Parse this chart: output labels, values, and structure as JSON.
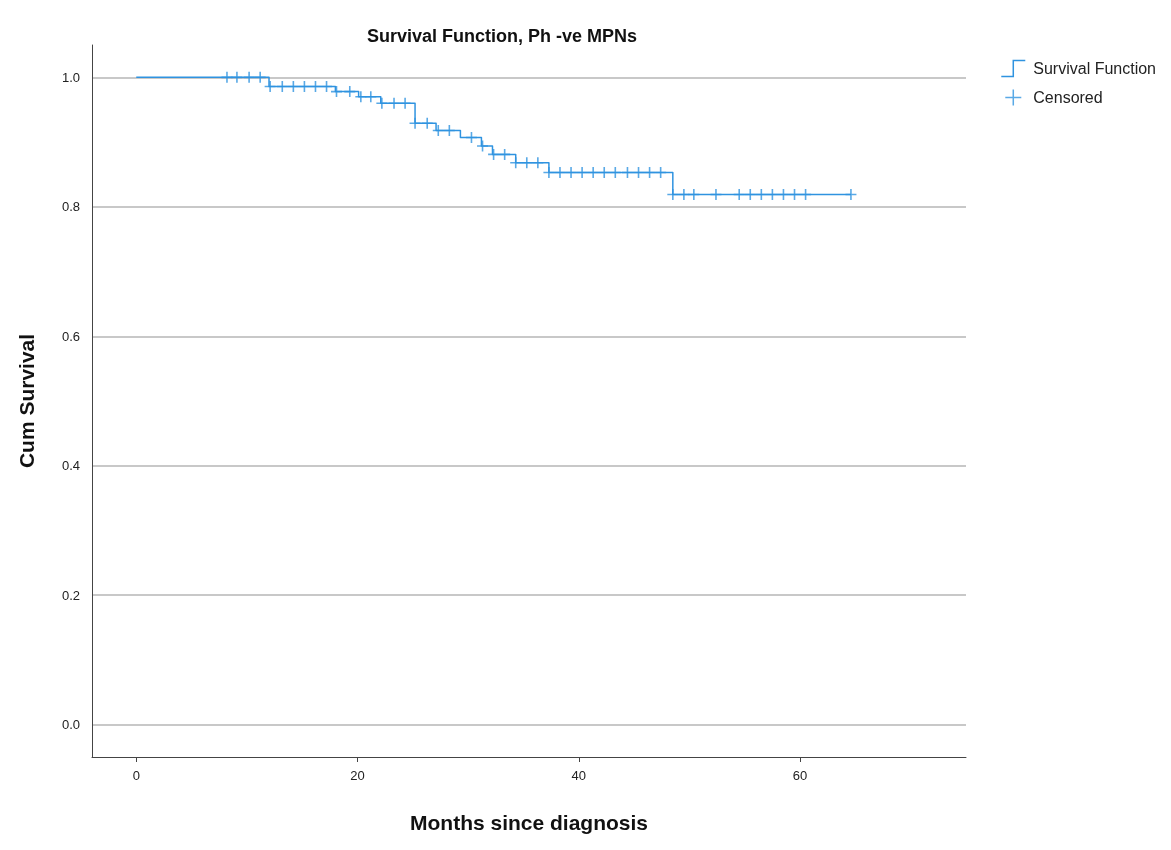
{
  "chart_data": {
    "type": "step",
    "title": "Survival Function, Ph -ve MPNs",
    "xlabel": "Months since diagnosis",
    "ylabel": "Cum Survival",
    "xlim": [
      -4,
      75
    ],
    "xticks": [
      0,
      20,
      40,
      60
    ],
    "ylim": [
      -0.05,
      1.05
    ],
    "yticks": [
      {
        "value": 0,
        "label": "0.0"
      },
      {
        "value": 0.2,
        "label": "0.2"
      },
      {
        "value": 0.4,
        "label": "0.4"
      },
      {
        "value": 0.6,
        "label": "0.6"
      },
      {
        "value": 0.8,
        "label": "0.8"
      },
      {
        "value": 1,
        "label": "1.0"
      }
    ],
    "grid": "y",
    "legend": "top right",
    "series": [
      {
        "name": "Survival Function",
        "color": "#2f93e0",
        "marker": "none",
        "x": [
          0,
          12,
          18,
          20.1,
          22.1,
          25.2,
          27.1,
          29.3,
          31.2,
          32.2,
          34.3,
          37.3,
          48.5,
          64.6
        ],
        "values": [
          1,
          0.986,
          0.978,
          0.97,
          0.96,
          0.929,
          0.918,
          0.907,
          0.894,
          0.881,
          0.868,
          0.853,
          0.819,
          0.819
        ]
      },
      {
        "name": "Censored",
        "type": "scatter",
        "color": "#2f93e0",
        "marker": "cross",
        "x": [
          8.2,
          9.1,
          10.2,
          11.2,
          12.1,
          13.2,
          14.2,
          15.2,
          16.2,
          17.2,
          18.1,
          19.3,
          20.3,
          21.2,
          22.2,
          23.3,
          24.3,
          25.2,
          26.3,
          27.3,
          28.3,
          30.3,
          31.3,
          32.3,
          33.3,
          34.3,
          35.3,
          36.3,
          37.3,
          38.3,
          39.3,
          40.3,
          41.3,
          42.3,
          43.3,
          44.4,
          45.4,
          46.4,
          47.4,
          48.5,
          49.5,
          50.4,
          52.4,
          54.5,
          55.5,
          56.5,
          57.5,
          58.5,
          59.5,
          60.5,
          64.6
        ],
        "values": [
          1,
          1,
          1,
          1,
          0.986,
          0.986,
          0.986,
          0.986,
          0.986,
          0.986,
          0.978,
          0.978,
          0.97,
          0.97,
          0.96,
          0.96,
          0.96,
          0.929,
          0.929,
          0.918,
          0.918,
          0.907,
          0.894,
          0.881,
          0.881,
          0.868,
          0.868,
          0.868,
          0.853,
          0.853,
          0.853,
          0.853,
          0.853,
          0.853,
          0.853,
          0.853,
          0.853,
          0.853,
          0.853,
          0.819,
          0.819,
          0.819,
          0.819,
          0.819,
          0.819,
          0.819,
          0.819,
          0.819,
          0.819,
          0.819,
          0.819
        ]
      }
    ]
  }
}
